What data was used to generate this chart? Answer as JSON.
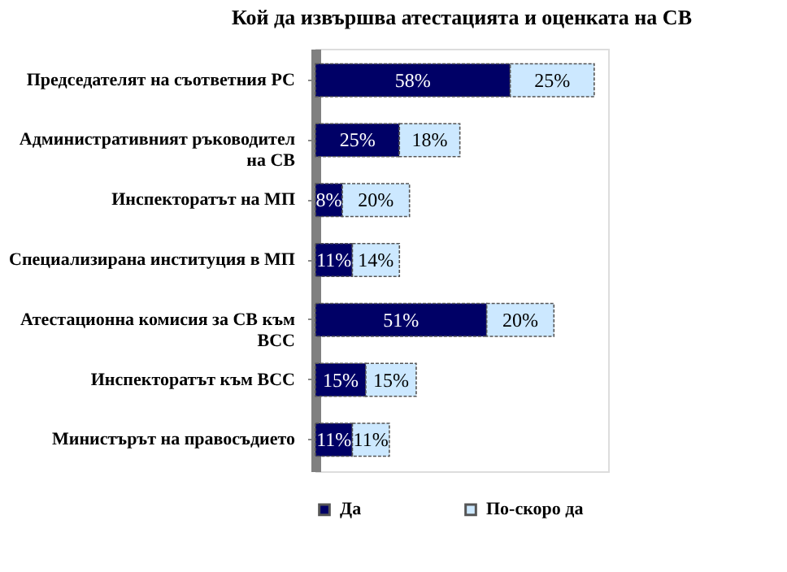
{
  "chart_data": {
    "type": "bar",
    "orientation": "horizontal",
    "stacked": true,
    "title": "Кой да извършва атестацията и оценката на СВ",
    "categories": [
      "Председателят на съответния РС",
      "Административният ръководител на СВ",
      "Инспекторатът на МП",
      "Специализирана институция в МП",
      "Атестационна комисия за СВ към ВСС",
      "Инспекторатът към ВСС",
      "Министърът на правосъдието"
    ],
    "series": [
      {
        "name": "Да",
        "color": "#000066",
        "values": [
          58,
          25,
          8,
          11,
          51,
          15,
          11
        ],
        "value_labels": [
          "58%",
          "25%",
          "8%",
          "11%",
          "51%",
          "15%",
          "11%"
        ]
      },
      {
        "name": "По-скоро да",
        "color": "#cce8ff",
        "values": [
          25,
          18,
          20,
          14,
          20,
          15,
          11
        ],
        "value_labels": [
          "25%",
          "18%",
          "20%",
          "14%",
          "20%",
          "15%",
          "11%"
        ]
      }
    ],
    "legend": "bottom",
    "grid": false,
    "tick_labels": "y"
  }
}
